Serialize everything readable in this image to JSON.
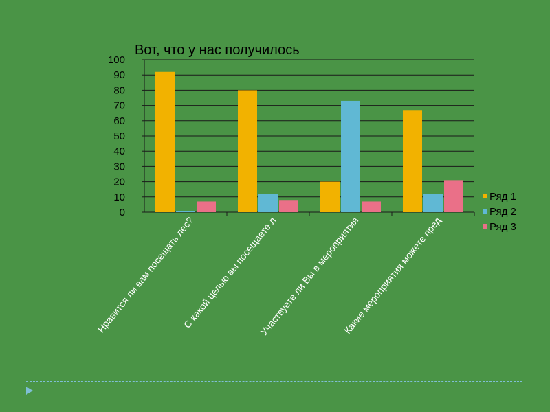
{
  "slide": {
    "accent_color": "#7fbfd6",
    "background_color": "#4a9446"
  },
  "chart_data": {
    "type": "bar",
    "title": "Вот, что у нас получилось",
    "categories": [
      "Нравится ли вам посещать лес?",
      "С какой  целью  вы  посещаете л",
      "Участвуете ли Вы в мероприятия",
      "Какие мероприятия можете пред"
    ],
    "series": [
      {
        "name": "Ряд 1",
        "color": "#f2b200",
        "values": [
          92,
          80,
          20,
          67
        ]
      },
      {
        "name": "Ряд 2",
        "color": "#60b8d4",
        "values": [
          0.5,
          12,
          73,
          12
        ]
      },
      {
        "name": "Ряд 3",
        "color": "#ea7088",
        "values": [
          7,
          8,
          7,
          21
        ]
      }
    ],
    "ylim": [
      0,
      100
    ],
    "yticks": [
      0,
      10,
      20,
      30,
      40,
      50,
      60,
      70,
      80,
      90,
      100
    ],
    "grid": true,
    "legend_position": "right"
  }
}
